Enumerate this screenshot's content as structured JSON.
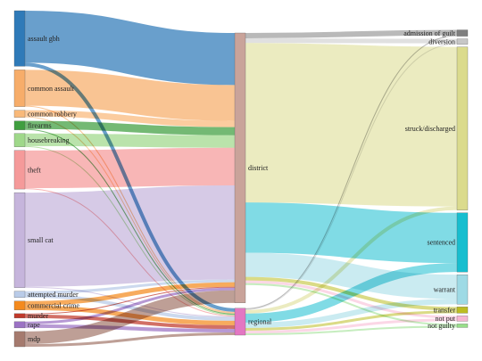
{
  "diagram": {
    "type": "sankey",
    "nodes": [
      {
        "id": "assault_gbh",
        "label": "assault gbh",
        "col": 0,
        "color": "#2f7ab8"
      },
      {
        "id": "common_assault",
        "label": "common assault",
        "col": 0,
        "color": "#f7ad6a"
      },
      {
        "id": "common_robbery",
        "label": "common robbery",
        "col": 0,
        "color": "#f9b97a"
      },
      {
        "id": "firearms",
        "label": "firearms",
        "col": 0,
        "color": "#3f9e3f"
      },
      {
        "id": "housebreaking",
        "label": "housebreaking",
        "col": 0,
        "color": "#9fd88a"
      },
      {
        "id": "theft",
        "label": "theft",
        "col": 0,
        "color": "#f59a9a"
      },
      {
        "id": "small_cat",
        "label": "small cat",
        "col": 0,
        "color": "#c6b5dc"
      },
      {
        "id": "attempted_murder",
        "label": "attempted murder",
        "col": 0,
        "color": "#b9cbe8"
      },
      {
        "id": "commercial_crime",
        "label": "commercial crime",
        "col": 0,
        "color": "#f48a1e"
      },
      {
        "id": "murder",
        "label": "murder",
        "col": 0,
        "color": "#c0392b"
      },
      {
        "id": "rape",
        "label": "rape",
        "col": 0,
        "color": "#9b72c4"
      },
      {
        "id": "mdp",
        "label": "mdp",
        "col": 0,
        "color": "#a57a6e"
      },
      {
        "id": "district",
        "label": "district",
        "col": 1,
        "color": "#c9a39a"
      },
      {
        "id": "regional",
        "label": "regional",
        "col": 1,
        "color": "#e377c2"
      },
      {
        "id": "admission_of_guilt",
        "label": "admission of guilt",
        "col": 2,
        "color": "#7f7f7f"
      },
      {
        "id": "diversion",
        "label": "diversion",
        "col": 2,
        "color": "#c7c7c7"
      },
      {
        "id": "struck_discharged",
        "label": "struck/discharged",
        "col": 2,
        "color": "#dbdb8d"
      },
      {
        "id": "sentenced",
        "label": "sentenced",
        "col": 2,
        "color": "#17becf"
      },
      {
        "id": "warrant",
        "label": "warrant",
        "col": 2,
        "color": "#9edae5"
      },
      {
        "id": "transfer",
        "label": "transfer",
        "col": 2,
        "color": "#bcbd22"
      },
      {
        "id": "not_put",
        "label": "not put",
        "col": 2,
        "color": "#f7b6d2"
      },
      {
        "id": "not_guilty",
        "label": "not guilty",
        "col": 2,
        "color": "#98df8a"
      }
    ],
    "links": [
      {
        "source": "assault_gbh",
        "target": "district",
        "value": 58
      },
      {
        "source": "assault_gbh",
        "target": "regional",
        "value": 4
      },
      {
        "source": "common_assault",
        "target": "district",
        "value": 40
      },
      {
        "source": "common_assault",
        "target": "regional",
        "value": 1
      },
      {
        "source": "common_robbery",
        "target": "district",
        "value": 7
      },
      {
        "source": "common_robbery",
        "target": "regional",
        "value": 1
      },
      {
        "source": "firearms",
        "target": "district",
        "value": 9
      },
      {
        "source": "firearms",
        "target": "regional",
        "value": 1
      },
      {
        "source": "housebreaking",
        "target": "district",
        "value": 14
      },
      {
        "source": "housebreaking",
        "target": "regional",
        "value": 1
      },
      {
        "source": "theft",
        "target": "district",
        "value": 42
      },
      {
        "source": "theft",
        "target": "regional",
        "value": 1
      },
      {
        "source": "small_cat",
        "target": "district",
        "value": 105
      },
      {
        "source": "small_cat",
        "target": "regional",
        "value": 1
      },
      {
        "source": "attempted_murder",
        "target": "district",
        "value": 3
      },
      {
        "source": "attempted_murder",
        "target": "regional",
        "value": 4
      },
      {
        "source": "commercial_crime",
        "target": "district",
        "value": 5
      },
      {
        "source": "commercial_crime",
        "target": "regional",
        "value": 5
      },
      {
        "source": "murder",
        "target": "district",
        "value": 1
      },
      {
        "source": "murder",
        "target": "regional",
        "value": 4
      },
      {
        "source": "rape",
        "target": "district",
        "value": 3
      },
      {
        "source": "rape",
        "target": "regional",
        "value": 4
      },
      {
        "source": "mdp",
        "target": "district",
        "value": 14
      },
      {
        "source": "mdp",
        "target": "regional",
        "value": 3
      },
      {
        "source": "district",
        "target": "admission_of_guilt",
        "value": 6
      },
      {
        "source": "district",
        "target": "diversion",
        "value": 5
      },
      {
        "source": "district",
        "target": "struck_discharged",
        "value": 178
      },
      {
        "source": "district",
        "target": "sentenced",
        "value": 56
      },
      {
        "source": "district",
        "target": "warrant",
        "value": 27
      },
      {
        "source": "district",
        "target": "transfer",
        "value": 4
      },
      {
        "source": "district",
        "target": "not_put",
        "value": 3
      },
      {
        "source": "district",
        "target": "not_guilty",
        "value": 2
      },
      {
        "source": "regional",
        "target": "admission_of_guilt",
        "value": 1
      },
      {
        "source": "regional",
        "target": "diversion",
        "value": 1
      },
      {
        "source": "regional",
        "target": "struck_discharged",
        "value": 4
      },
      {
        "source": "regional",
        "target": "sentenced",
        "value": 10
      },
      {
        "source": "regional",
        "target": "warrant",
        "value": 6
      },
      {
        "source": "regional",
        "target": "transfer",
        "value": 3
      },
      {
        "source": "regional",
        "target": "not_put",
        "value": 3
      },
      {
        "source": "regional",
        "target": "not_guilty",
        "value": 2
      }
    ]
  }
}
